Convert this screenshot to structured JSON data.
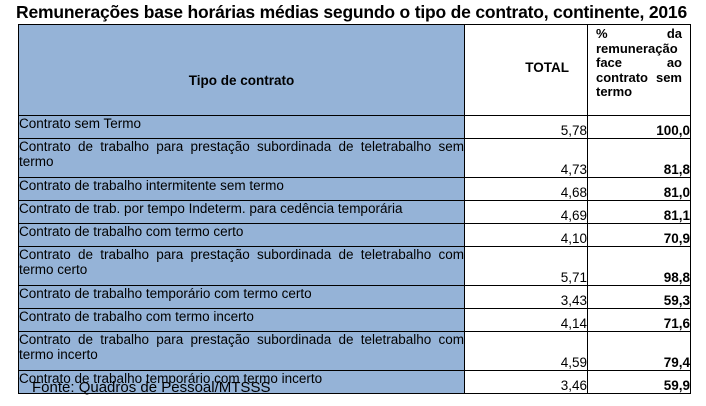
{
  "title": "Remunerações base horárias médias segundo o tipo de contrato, continente, 2016",
  "headers": {
    "type": "Tipo de contrato",
    "total": "TOTAL",
    "pct": "% da remuneração face ao contrato sem termo"
  },
  "rows": [
    {
      "type": "Contrato sem Termo",
      "total": "5,78",
      "pct": "100,0"
    },
    {
      "type": "Contrato de trabalho para prestação subordinada de teletrabalho sem termo",
      "total": "4,73",
      "pct": "81,8"
    },
    {
      "type": "Contrato de trabalho intermitente sem termo",
      "total": "4,68",
      "pct": "81,0"
    },
    {
      "type": "Contrato de trab. por tempo Indeterm. para cedência temporária",
      "total": "4,69",
      "pct": "81,1"
    },
    {
      "type": "Contrato de trabalho com termo certo",
      "total": "4,10",
      "pct": "70,9"
    },
    {
      "type": "Contrato de trabalho para prestação subordinada de teletrabalho com termo certo",
      "total": "5,71",
      "pct": "98,8"
    },
    {
      "type": "Contrato de trabalho temporário com termo certo",
      "total": "3,43",
      "pct": "59,3"
    },
    {
      "type": "Contrato de trabalho com termo incerto",
      "total": "4,14",
      "pct": "71,6"
    },
    {
      "type": "Contrato de trabalho para prestação subordinada de teletrabalho com termo incerto",
      "total": "4,59",
      "pct": "79,4"
    },
    {
      "type": "Contrato de trabalho temporário com termo incerto",
      "total": "3,46",
      "pct": "59,9"
    }
  ],
  "source": "Fonte: Quadros de Pessoal/MTSSS",
  "colors": {
    "header_fill": "#95b3d7",
    "cell_fill": "#ffffff",
    "border": "#000000"
  }
}
